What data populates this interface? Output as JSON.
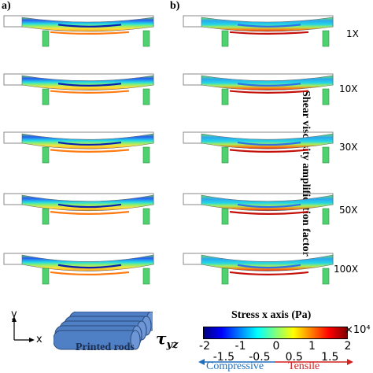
{
  "panels": {
    "a": "a)",
    "b": "b)"
  },
  "ylabel": "Shear viscosity amplification factor",
  "factors": [
    "1X",
    "10X",
    "30X",
    "50X",
    "100X"
  ],
  "colorbar": {
    "title": "Stress x axis (Pa)",
    "ticks": [
      "-2",
      "-1.5",
      "-1",
      "-0.5",
      "0",
      "0.5",
      "1",
      "1.5",
      "2"
    ],
    "exponent": "×10⁴",
    "colors": [
      "#00007f",
      "#0000ff",
      "#007fff",
      "#00ffff",
      "#7fff7f",
      "#ffff00",
      "#ff7f00",
      "#ff0000",
      "#7f0000"
    ],
    "compressive": "Compressive",
    "tensile": "Tensile",
    "compressive_color": "#1f6fc0",
    "tensile_color": "#d42020"
  },
  "axes": {
    "x": "x",
    "y": "y"
  },
  "rods": {
    "label": "Printed rods",
    "color": "#4f7fc4"
  },
  "shear_symbol": "τyz",
  "support_color": "#4fd16f"
}
